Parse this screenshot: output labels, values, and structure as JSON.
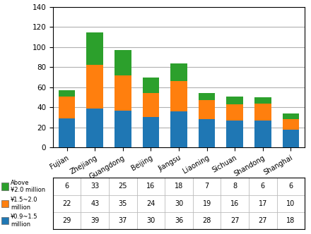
{
  "chart_data": {
    "type": "bar",
    "stacked": true,
    "grid": true,
    "categories": [
      "Fujian",
      "Zhejiang",
      "Guangdong",
      "Beijing",
      "Jiangsu",
      "Liaoning",
      "Sichuan",
      "Shandong",
      "Shanghai"
    ],
    "series": [
      {
        "name": "¥0.9~1.5\nmillion",
        "values": [
          29,
          39,
          37,
          30,
          36,
          28,
          27,
          27,
          18
        ]
      },
      {
        "name": "¥1.5~2.0\nmillion",
        "values": [
          22,
          43,
          35,
          24,
          30,
          19,
          16,
          17,
          10
        ]
      },
      {
        "name": "Above\n¥2.0 million",
        "values": [
          6,
          33,
          25,
          16,
          18,
          7,
          8,
          6,
          6
        ]
      }
    ],
    "ylim": [
      0,
      140
    ],
    "yticks": [
      0,
      20,
      40,
      60,
      80,
      100,
      120,
      140
    ]
  }
}
